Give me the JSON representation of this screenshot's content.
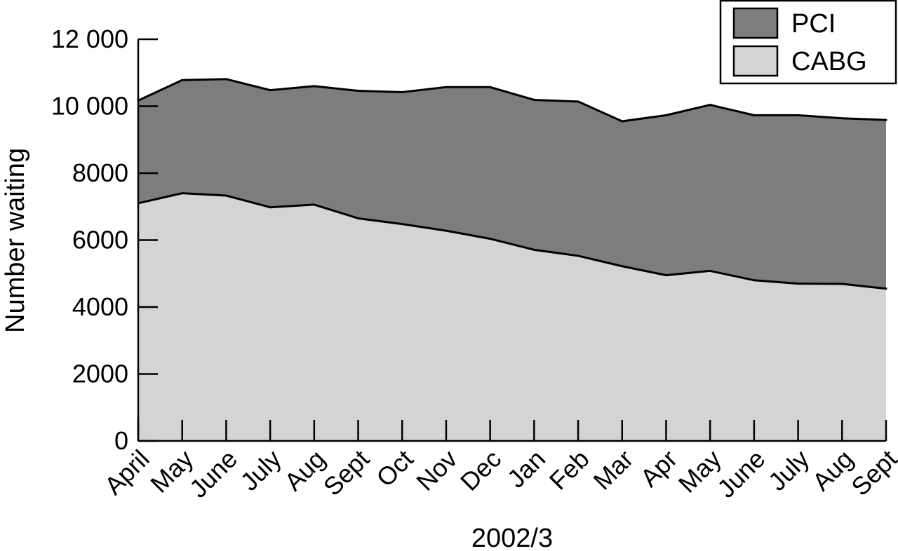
{
  "chart_data": {
    "type": "area",
    "stacked": true,
    "title": "",
    "xlabel": "2002/3",
    "ylabel": "Number waiting",
    "ylim": [
      0,
      12000
    ],
    "y_ticks": [
      0,
      2000,
      4000,
      6000,
      8000,
      10000,
      12000
    ],
    "y_tick_labels": [
      "0",
      "2000",
      "4000",
      "6000",
      "8000",
      "10 000",
      "12 000"
    ],
    "categories": [
      "April",
      "May",
      "June",
      "July",
      "Aug",
      "Sept",
      "Oct",
      "Nov",
      "Dec",
      "Jan",
      "Feb",
      "Mar",
      "Apr",
      "May",
      "June",
      "July",
      "Aug",
      "Sept"
    ],
    "series": [
      {
        "name": "CABG",
        "color": "#d4d4d4",
        "values": [
          7100,
          7400,
          7330,
          6980,
          7060,
          6650,
          6480,
          6280,
          6040,
          5710,
          5530,
          5220,
          4950,
          5080,
          4800,
          4700,
          4690,
          4550
        ]
      },
      {
        "name": "PCI",
        "color": "#7d7d7d",
        "values": [
          3070,
          3380,
          3480,
          3500,
          3540,
          3810,
          3940,
          4290,
          4530,
          4480,
          4610,
          4330,
          4780,
          4960,
          4930,
          5030,
          4950,
          5040
        ]
      }
    ],
    "legend": {
      "position": "top-right",
      "order": [
        "PCI",
        "CABG"
      ]
    },
    "grid": false
  }
}
